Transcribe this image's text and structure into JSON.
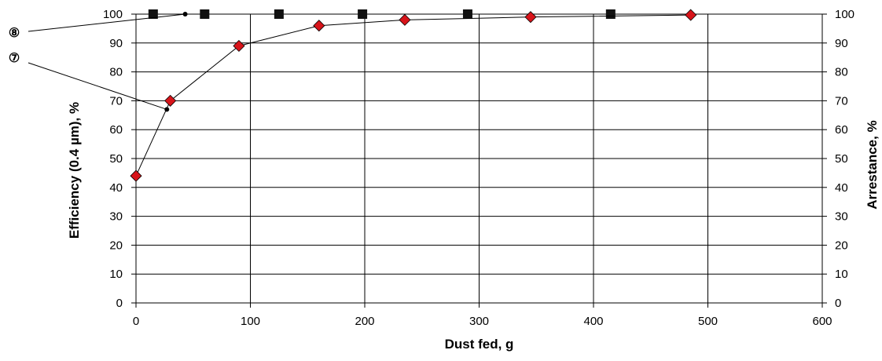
{
  "chart_data": {
    "type": "scatter",
    "xlabel": "Dust fed, g",
    "ylabel": "Efficiency (0.4 µm), %",
    "y2label": "Arrestance, %",
    "xlim": [
      0,
      600
    ],
    "ylim": [
      0,
      100
    ],
    "y2lim": [
      0,
      100
    ],
    "grid": true,
    "x_ticks": [
      0,
      100,
      200,
      300,
      400,
      500,
      600
    ],
    "y_ticks": [
      0,
      10,
      20,
      30,
      40,
      50,
      60,
      70,
      80,
      90,
      100
    ],
    "y2_ticks": [
      0,
      10,
      20,
      30,
      40,
      50,
      60,
      70,
      80,
      90,
      100
    ],
    "series": [
      {
        "axis": "right",
        "marker": "square",
        "color": "#111111",
        "line": false,
        "x": [
          15,
          60,
          125,
          198,
          290,
          415
        ],
        "y": [
          100,
          100,
          100,
          100,
          100,
          100
        ]
      },
      {
        "axis": "left",
        "marker": "diamond",
        "color": "#d7141a",
        "line": true,
        "x": [
          0,
          30,
          90,
          160,
          235,
          345,
          485
        ],
        "y": [
          44,
          70,
          89,
          96,
          98,
          99,
          99.7
        ]
      }
    ],
    "annotations": [
      {
        "label": "⑧",
        "point": [
          43,
          100
        ]
      },
      {
        "label": "⑦",
        "point": [
          27,
          67
        ]
      }
    ]
  }
}
